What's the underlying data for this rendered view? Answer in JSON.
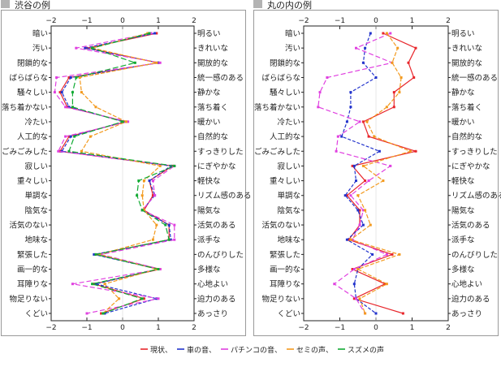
{
  "chart_data": [
    {
      "type": "line",
      "title": "渋谷の例",
      "xlim": [
        -2,
        2
      ],
      "xticks": [
        -2,
        -1,
        0,
        1,
        2
      ],
      "left_labels": [
        "暗い",
        "汚い",
        "閉鎖的な",
        "ばらばらな",
        "騒々しい",
        "落ち着かない",
        "冷たい",
        "人工的な",
        "ごみごみした",
        "寂しい",
        "重々しい",
        "単調な",
        "陰気な",
        "活気のない",
        "地味な",
        "緊張した",
        "画一的な",
        "耳障りな",
        "物足りない",
        "くどい"
      ],
      "right_labels": [
        "明るい",
        "きれいな",
        "開放的な",
        "統一感のある",
        "静かな",
        "落ち着く",
        "暖かい",
        "自然的な",
        "すっきりした",
        "にぎやかな",
        "軽快な",
        "リズム感のある",
        "陽気な",
        "活気のある",
        "派手な",
        "のんびりした",
        "多様な",
        "心地よい",
        "迫力のある",
        "あっさり"
      ],
      "series": [
        {
          "name": "現状",
          "color": "#e8262b",
          "values": [
            0.95,
            -1.0,
            1.0,
            -1.5,
            -1.75,
            -1.55,
            0.1,
            -1.5,
            -1.75,
            1.4,
            0.75,
            0.85,
            0.6,
            1.3,
            1.3,
            -0.75,
            1.05,
            -0.8,
            0.6,
            -0.6
          ]
        },
        {
          "name": "車の音",
          "color": "#2233cc",
          "values": [
            0.9,
            -1.05,
            1.0,
            -1.45,
            -1.7,
            -1.5,
            0.05,
            -1.45,
            -1.7,
            1.35,
            0.75,
            0.9,
            0.55,
            1.3,
            1.35,
            -0.8,
            1.0,
            -0.75,
            0.95,
            -0.5
          ]
        },
        {
          "name": "パチンコの音",
          "color": "#e040e0",
          "values": [
            0.8,
            -1.3,
            1.05,
            -1.85,
            -1.9,
            -1.6,
            0.15,
            -1.6,
            -1.8,
            1.45,
            0.85,
            0.9,
            0.55,
            1.45,
            1.45,
            -0.6,
            1.05,
            -1.4,
            1.0,
            -1.0
          ]
        },
        {
          "name": "セミの声",
          "color": "#f39a1e",
          "values": [
            0.7,
            -0.85,
            0.95,
            -1.2,
            -1.15,
            -0.75,
            0.1,
            -0.9,
            -1.15,
            1.05,
            0.6,
            0.55,
            0.6,
            0.95,
            0.85,
            -0.65,
            0.95,
            -0.5,
            -0.1,
            -0.55
          ]
        },
        {
          "name": "スズメの声",
          "color": "#11aa33",
          "values": [
            0.75,
            -0.85,
            0.35,
            -1.3,
            -1.4,
            -1.4,
            0.0,
            -1.35,
            -1.5,
            1.45,
            0.45,
            0.4,
            0.55,
            1.2,
            1.3,
            -0.75,
            1.0,
            -0.85,
            0.55,
            -0.55
          ]
        }
      ]
    },
    {
      "type": "line",
      "title": "丸の内の例",
      "xlim": [
        -2,
        2
      ],
      "xticks": [
        -2,
        -1,
        0,
        1,
        2
      ],
      "left_labels": [
        "暗い",
        "汚い",
        "閉鎖的な",
        "ばらばらな",
        "騒々しい",
        "落ち着かない",
        "冷たい",
        "人工的な",
        "ごみごみした",
        "寂しい",
        "重々しい",
        "単調な",
        "陰気な",
        "活気のない",
        "地味な",
        "緊張した",
        "画一的な",
        "耳障りな",
        "物足りない",
        "くどい"
      ],
      "right_labels": [
        "明るい",
        "きれいな",
        "開放的な",
        "統一感のある",
        "静かな",
        "落ち着く",
        "暖かい",
        "自然的な",
        "すっきりした",
        "にぎやかな",
        "軽快な",
        "リズム感のある",
        "陽気な",
        "活気のある",
        "派手な",
        "のんびりした",
        "多様な",
        "心地よい",
        "迫力のある",
        "あっさり"
      ],
      "series": [
        {
          "name": "現状",
          "color": "#e8262b",
          "values": [
            0.2,
            1.1,
            0.9,
            1.05,
            0.5,
            0.5,
            -0.35,
            -0.2,
            1.1,
            -0.65,
            -0.3,
            -0.8,
            -0.45,
            -0.45,
            -0.75,
            0.45,
            -0.65,
            0.25,
            -0.6,
            0.75
          ]
        },
        {
          "name": "車の音",
          "color": "#2233cc",
          "values": [
            -0.15,
            -0.3,
            -0.35,
            0.0,
            -0.7,
            -0.7,
            -0.8,
            -0.95,
            0.1,
            -0.6,
            -0.55,
            -0.85,
            -0.5,
            -0.35,
            -0.8,
            -0.1,
            -0.5,
            -0.6,
            -0.55,
            0.0
          ]
        },
        {
          "name": "パチンコの音",
          "color": "#e040e0",
          "values": [
            0.4,
            -0.55,
            0.45,
            -1.35,
            -1.55,
            -1.6,
            -0.45,
            -1.05,
            -1.1,
            0.4,
            -0.2,
            -0.7,
            -0.35,
            -0.45,
            -0.65,
            0.3,
            -0.6,
            -1.15,
            -0.55,
            -0.3
          ]
        },
        {
          "name": "セミの声",
          "color": "#f39a1e",
          "values": [
            0.3,
            0.6,
            0.45,
            0.7,
            0.65,
            0.3,
            -0.25,
            -0.05,
            0.95,
            -0.35,
            0.2,
            -0.5,
            -0.3,
            -0.15,
            -0.7,
            0.65,
            -0.5,
            0.3,
            -0.45,
            -0.3
          ]
        },
        {
          "name": "スズメの声",
          "color": "#11aa33",
          "values": []
        }
      ]
    }
  ],
  "legend": [
    {
      "label": "現状",
      "color": "#e8262b"
    },
    {
      "label": "車の音",
      "color": "#2233cc"
    },
    {
      "label": "パチンコの音",
      "color": "#e040e0"
    },
    {
      "label": "セミの声",
      "color": "#f39a1e"
    },
    {
      "label": "スズメの声",
      "color": "#11aa33"
    }
  ],
  "legend_separator": "、"
}
